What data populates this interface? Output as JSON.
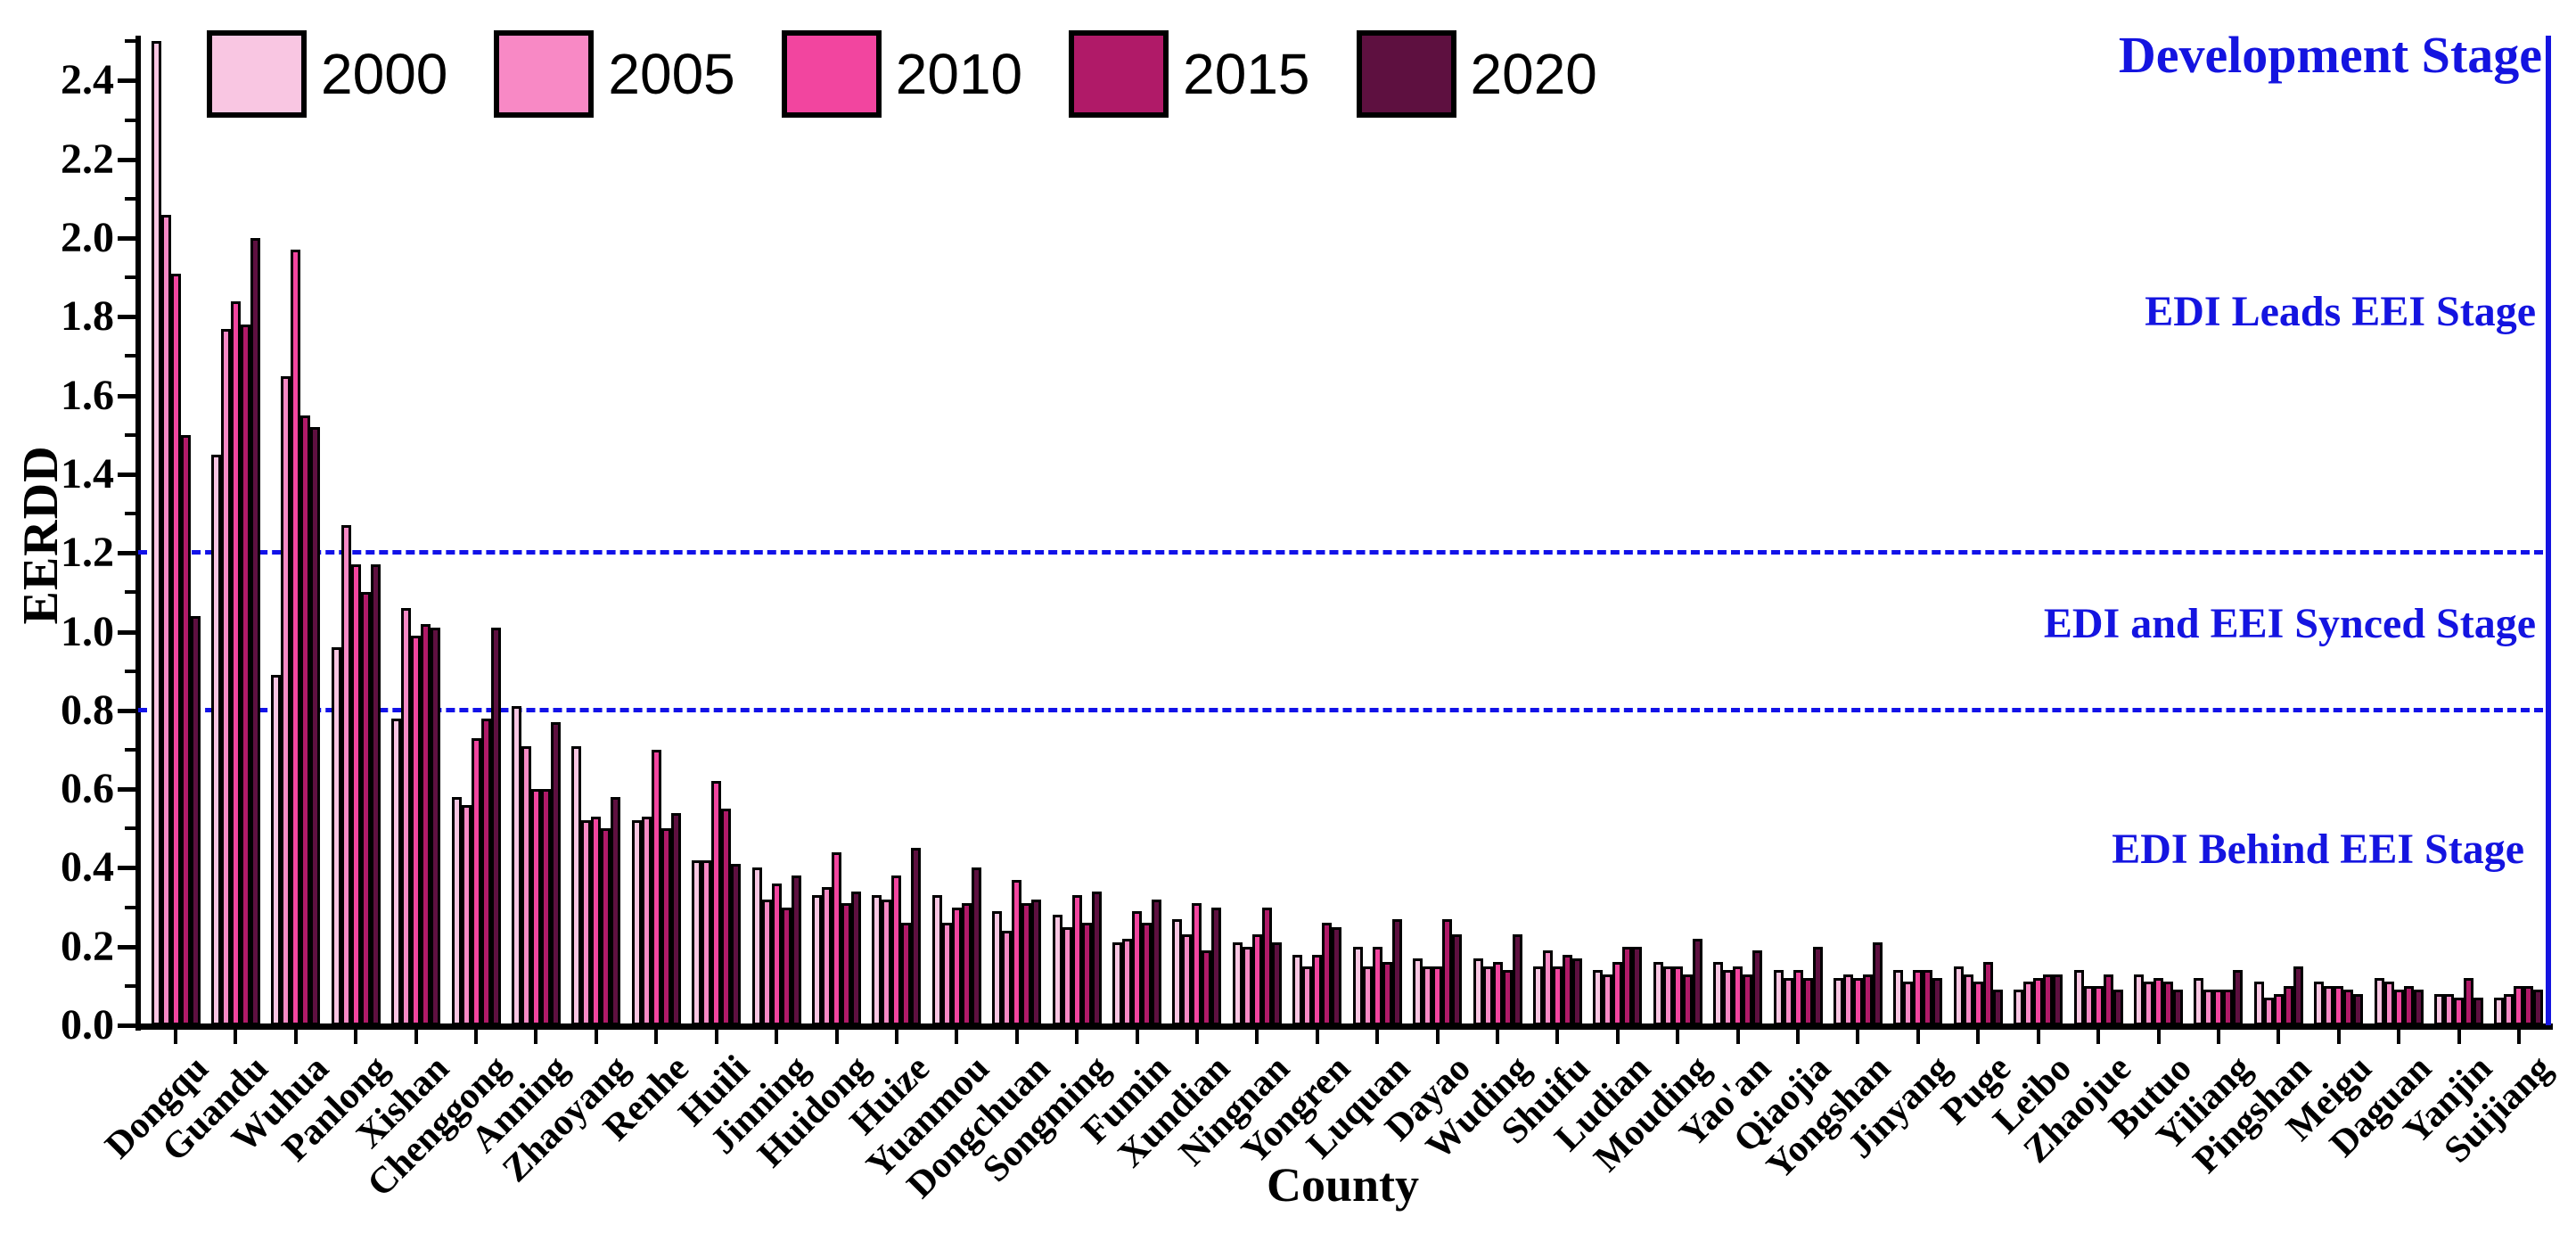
{
  "chart_data": {
    "type": "bar",
    "title": "",
    "xlabel": "County",
    "ylabel": "EERDD",
    "ylim": [
      0,
      2.5
    ],
    "ytick_step": 0.2,
    "ytick_minor_step": 0.1,
    "grid": false,
    "legend_position": "top-left-horizontal",
    "accent_blue": "#1414e0",
    "dashed_line_color": "#1212e8",
    "reference_lines": [
      {
        "y": 1.2
      },
      {
        "y": 0.8
      }
    ],
    "annotations": [
      {
        "text": "Development Stage"
      },
      {
        "text": "EDI Leads EEI Stage"
      },
      {
        "text": "EDI and EEI Synced Stage"
      },
      {
        "text": "EDI Behind EEI Stage"
      }
    ],
    "categories": [
      "Dongqu",
      "Guandu",
      "Wuhua",
      "Panlong",
      "Xishan",
      "Chenggong",
      "Anning",
      "Zhaoyang",
      "Renhe",
      "Huili",
      "Jinning",
      "Huidong",
      "Huize",
      "Yuanmou",
      "Dongchuan",
      "Songming",
      "Fumin",
      "Xundian",
      "Ningnan",
      "Yongren",
      "Luquan",
      "Dayao",
      "Wuding",
      "Shuifu",
      "Ludian",
      "Mouding",
      "Yao'an",
      "Qiaojia",
      "Yongshan",
      "Jinyang",
      "Puge",
      "Leibo",
      "Zhaojue",
      "Butuo",
      "Yiliang",
      "Pingshan",
      "Meigu",
      "Daguan",
      "Yanjin",
      "Suijiang"
    ],
    "series": [
      {
        "name": "2000",
        "color": "#f9c6e2",
        "values": [
          2.5,
          1.45,
          0.89,
          0.96,
          0.78,
          0.58,
          0.81,
          0.71,
          0.52,
          0.42,
          0.4,
          0.33,
          0.33,
          0.33,
          0.29,
          0.28,
          0.21,
          0.27,
          0.21,
          0.18,
          0.2,
          0.17,
          0.17,
          0.15,
          0.14,
          0.16,
          0.16,
          0.14,
          0.12,
          0.14,
          0.15,
          0.09,
          0.14,
          0.13,
          0.12,
          0.11,
          0.11,
          0.12,
          0.08,
          0.07
        ]
      },
      {
        "name": "2005",
        "color": "#f889c5",
        "values": [
          2.06,
          1.77,
          1.65,
          1.27,
          1.06,
          0.56,
          0.71,
          0.52,
          0.53,
          0.42,
          0.32,
          0.35,
          0.32,
          0.26,
          0.24,
          0.25,
          0.22,
          0.23,
          0.2,
          0.15,
          0.15,
          0.15,
          0.15,
          0.19,
          0.13,
          0.15,
          0.14,
          0.12,
          0.13,
          0.11,
          0.13,
          0.11,
          0.1,
          0.11,
          0.09,
          0.07,
          0.1,
          0.11,
          0.08,
          0.08
        ]
      },
      {
        "name": "2010",
        "color": "#f2459f",
        "values": [
          1.91,
          1.84,
          1.97,
          1.17,
          0.99,
          0.73,
          0.6,
          0.53,
          0.7,
          0.62,
          0.36,
          0.44,
          0.38,
          0.3,
          0.37,
          0.33,
          0.29,
          0.31,
          0.23,
          0.18,
          0.2,
          0.15,
          0.16,
          0.15,
          0.16,
          0.15,
          0.15,
          0.14,
          0.12,
          0.14,
          0.11,
          0.12,
          0.1,
          0.12,
          0.09,
          0.08,
          0.1,
          0.09,
          0.07,
          0.1
        ]
      },
      {
        "name": "2015",
        "color": "#b01a68",
        "values": [
          1.5,
          1.78,
          1.55,
          1.1,
          1.02,
          0.78,
          0.6,
          0.5,
          0.5,
          0.55,
          0.3,
          0.31,
          0.26,
          0.31,
          0.31,
          0.26,
          0.26,
          0.19,
          0.3,
          0.26,
          0.16,
          0.27,
          0.14,
          0.18,
          0.2,
          0.13,
          0.13,
          0.12,
          0.13,
          0.14,
          0.16,
          0.13,
          0.13,
          0.11,
          0.09,
          0.1,
          0.09,
          0.1,
          0.12,
          0.1
        ]
      },
      {
        "name": "2020",
        "color": "#5e1040",
        "values": [
          1.04,
          2.0,
          1.52,
          1.17,
          1.01,
          1.01,
          0.77,
          0.58,
          0.54,
          0.41,
          0.38,
          0.34,
          0.45,
          0.4,
          0.32,
          0.34,
          0.32,
          0.3,
          0.21,
          0.25,
          0.27,
          0.23,
          0.23,
          0.17,
          0.2,
          0.22,
          0.19,
          0.2,
          0.21,
          0.12,
          0.09,
          0.13,
          0.09,
          0.09,
          0.14,
          0.15,
          0.08,
          0.09,
          0.07,
          0.09
        ]
      }
    ]
  }
}
